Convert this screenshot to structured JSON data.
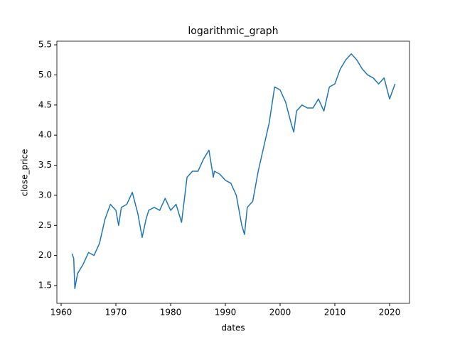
{
  "chart_data": {
    "type": "line",
    "title": "logarithmic_graph",
    "x_label": "dates",
    "y_label": "close_price",
    "x": [
      1962.0,
      1962.3,
      1962.5,
      1963.0,
      1964.0,
      1965.0,
      1966.0,
      1967.0,
      1968.0,
      1969.0,
      1970.0,
      1970.5,
      1971.0,
      1972.0,
      1973.0,
      1974.0,
      1974.8,
      1975.5,
      1976.0,
      1977.0,
      1978.0,
      1979.0,
      1980.0,
      1981.0,
      1982.0,
      1983.0,
      1984.0,
      1985.0,
      1986.0,
      1987.0,
      1987.8,
      1988.0,
      1989.0,
      1990.0,
      1991.0,
      1992.0,
      1993.0,
      1993.5,
      1994.0,
      1995.0,
      1996.0,
      1997.0,
      1998.0,
      1999.0,
      2000.0,
      2001.0,
      2002.0,
      2002.5,
      2003.0,
      2004.0,
      2005.0,
      2006.0,
      2007.0,
      2008.0,
      2009.0,
      2010.0,
      2011.0,
      2012.0,
      2013.0,
      2014.0,
      2015.0,
      2016.0,
      2017.0,
      2018.0,
      2019.0,
      2020.0,
      2021.0
    ],
    "series": [
      {
        "name": "close_price",
        "color": "#1f77b4",
        "values": [
          2.03,
          1.95,
          1.45,
          1.7,
          1.85,
          2.05,
          2.0,
          2.2,
          2.6,
          2.85,
          2.75,
          2.5,
          2.8,
          2.85,
          3.05,
          2.7,
          2.3,
          2.6,
          2.75,
          2.8,
          2.75,
          2.95,
          2.75,
          2.85,
          2.55,
          3.3,
          3.4,
          3.4,
          3.6,
          3.75,
          3.3,
          3.4,
          3.35,
          3.25,
          3.2,
          3.0,
          2.5,
          2.35,
          2.8,
          2.9,
          3.4,
          3.8,
          4.2,
          4.8,
          4.75,
          4.55,
          4.2,
          4.05,
          4.4,
          4.5,
          4.45,
          4.45,
          4.6,
          4.4,
          4.8,
          4.85,
          5.1,
          5.25,
          5.35,
          5.25,
          5.1,
          5.0,
          4.95,
          4.85,
          4.95,
          4.6,
          4.85
        ]
      }
    ],
    "xlim": [
      1959.22,
      2023.64
    ],
    "ylim": [
      1.205,
      5.56
    ],
    "xticks": [
      1960,
      1970,
      1980,
      1990,
      2000,
      2010,
      2020
    ],
    "yticks": [
      1.5,
      {
        "value": 2.0,
        "label": "2.0"
      },
      2.5,
      {
        "value": 3.0,
        "label": "3.0"
      },
      3.5,
      {
        "value": 4.0,
        "label": "4.0"
      },
      4.5,
      {
        "value": 5.0,
        "label": "5.0"
      },
      5.5
    ],
    "grid": false
  }
}
